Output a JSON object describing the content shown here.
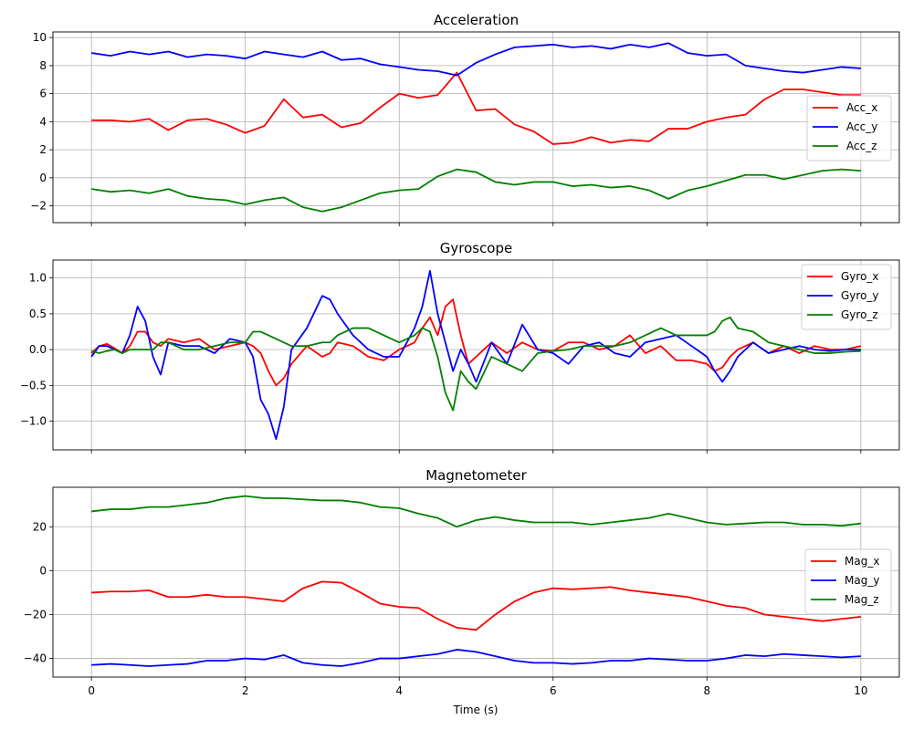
{
  "xlabel": "Time (s)",
  "x_ticks": [
    0,
    2,
    4,
    6,
    8,
    10
  ],
  "colors": {
    "x": "#ff0000",
    "y": "#0000ff",
    "z": "#008000",
    "grid": "#b0b0b0"
  },
  "chart_data": [
    {
      "type": "line",
      "title": "Acceleration",
      "xlim": [
        -0.5,
        10.5
      ],
      "ylim": [
        -3.2,
        10.4
      ],
      "y_ticks": [
        -2,
        0,
        2,
        4,
        6,
        8,
        10
      ],
      "grid": true,
      "legend_position": "center-right",
      "x": [
        0,
        0.25,
        0.5,
        0.75,
        1,
        1.25,
        1.5,
        1.75,
        2,
        2.25,
        2.5,
        2.75,
        3,
        3.25,
        3.5,
        3.75,
        4,
        4.25,
        4.5,
        4.75,
        5,
        5.25,
        5.5,
        5.75,
        6,
        6.25,
        6.5,
        6.75,
        7,
        7.25,
        7.5,
        7.75,
        8,
        8.25,
        8.5,
        8.75,
        9,
        9.25,
        9.5,
        9.75,
        10
      ],
      "series": [
        {
          "name": "Acc_x",
          "color": "#ff0000",
          "values": [
            4.1,
            4.1,
            4.0,
            4.2,
            3.4,
            4.1,
            4.2,
            3.8,
            3.2,
            3.7,
            5.6,
            4.3,
            4.5,
            3.6,
            3.9,
            5.0,
            6.0,
            5.7,
            5.9,
            7.5,
            4.8,
            4.9,
            3.8,
            3.3,
            2.4,
            2.5,
            2.9,
            2.5,
            2.7,
            2.6,
            3.5,
            3.5,
            4.0,
            4.3,
            4.5,
            5.6,
            6.3,
            6.3,
            6.1,
            5.9,
            5.9
          ]
        },
        {
          "name": "Acc_y",
          "color": "#0000ff",
          "values": [
            8.9,
            8.7,
            9.0,
            8.8,
            9.0,
            8.6,
            8.8,
            8.7,
            8.5,
            9.0,
            8.8,
            8.6,
            9.0,
            8.4,
            8.5,
            8.1,
            7.9,
            7.7,
            7.6,
            7.3,
            8.2,
            8.8,
            9.3,
            9.4,
            9.5,
            9.3,
            9.4,
            9.2,
            9.5,
            9.3,
            9.6,
            8.9,
            8.7,
            8.8,
            8.0,
            7.8,
            7.6,
            7.5,
            7.7,
            7.9,
            7.8
          ]
        },
        {
          "name": "Acc_z",
          "color": "#008000",
          "values": [
            -0.8,
            -1.0,
            -0.9,
            -1.1,
            -0.8,
            -1.3,
            -1.5,
            -1.6,
            -1.9,
            -1.6,
            -1.4,
            -2.1,
            -2.4,
            -2.1,
            -1.6,
            -1.1,
            -0.9,
            -0.8,
            0.1,
            0.6,
            0.4,
            -0.3,
            -0.5,
            -0.3,
            -0.3,
            -0.6,
            -0.5,
            -0.7,
            -0.6,
            -0.9,
            -1.5,
            -0.9,
            -0.6,
            -0.2,
            0.2,
            0.2,
            -0.1,
            0.2,
            0.5,
            0.6,
            0.5
          ]
        }
      ]
    },
    {
      "type": "line",
      "title": "Gyroscope",
      "xlim": [
        -0.5,
        10.5
      ],
      "ylim": [
        -1.4,
        1.25
      ],
      "y_ticks": [
        -1.0,
        -0.5,
        0.0,
        0.5,
        1.0
      ],
      "y_tick_labels": [
        "−1.0",
        "−0.5",
        "0.0",
        "0.5",
        "1.0"
      ],
      "grid": true,
      "legend_position": "top-right",
      "x": [
        0,
        0.1,
        0.2,
        0.3,
        0.4,
        0.5,
        0.6,
        0.7,
        0.8,
        0.9,
        1,
        1.2,
        1.4,
        1.6,
        1.8,
        2,
        2.1,
        2.2,
        2.3,
        2.4,
        2.5,
        2.6,
        2.8,
        3,
        3.1,
        3.2,
        3.4,
        3.6,
        3.8,
        4,
        4.2,
        4.3,
        4.4,
        4.5,
        4.6,
        4.7,
        4.8,
        4.9,
        5,
        5.2,
        5.4,
        5.6,
        5.8,
        6,
        6.2,
        6.4,
        6.6,
        6.8,
        7,
        7.2,
        7.4,
        7.6,
        7.8,
        8,
        8.1,
        8.2,
        8.3,
        8.4,
        8.6,
        8.8,
        9,
        9.2,
        9.4,
        9.6,
        9.8,
        10
      ],
      "series": [
        {
          "name": "Gyro_x",
          "color": "#ff0000",
          "values": [
            -0.05,
            0.05,
            0.08,
            0.02,
            -0.05,
            0.05,
            0.25,
            0.25,
            0.1,
            0.05,
            0.15,
            0.1,
            0.15,
            0.0,
            0.05,
            0.1,
            0.05,
            -0.05,
            -0.3,
            -0.5,
            -0.4,
            -0.2,
            0.05,
            -0.1,
            -0.05,
            0.1,
            0.05,
            -0.1,
            -0.15,
            0.0,
            0.1,
            0.3,
            0.45,
            0.2,
            0.6,
            0.7,
            0.2,
            -0.2,
            -0.1,
            0.1,
            -0.05,
            0.1,
            0.0,
            -0.02,
            0.1,
            0.1,
            0.0,
            0.05,
            0.2,
            -0.05,
            0.05,
            -0.15,
            -0.15,
            -0.2,
            -0.3,
            -0.25,
            -0.1,
            0.0,
            0.1,
            -0.05,
            0.05,
            -0.05,
            0.05,
            0.0,
            0.0,
            0.05
          ]
        },
        {
          "name": "Gyro_y",
          "color": "#0000ff",
          "values": [
            -0.1,
            0.05,
            0.05,
            0.0,
            -0.05,
            0.2,
            0.6,
            0.4,
            -0.1,
            -0.35,
            0.1,
            0.05,
            0.05,
            -0.05,
            0.15,
            0.1,
            -0.1,
            -0.7,
            -0.9,
            -1.25,
            -0.8,
            0.0,
            0.3,
            0.75,
            0.7,
            0.5,
            0.2,
            0.0,
            -0.1,
            -0.1,
            0.3,
            0.6,
            1.1,
            0.5,
            0.1,
            -0.3,
            0.0,
            -0.2,
            -0.45,
            0.1,
            -0.2,
            0.35,
            0.0,
            -0.05,
            -0.2,
            0.05,
            0.1,
            -0.05,
            -0.1,
            0.1,
            0.15,
            0.2,
            0.05,
            -0.1,
            -0.3,
            -0.45,
            -0.3,
            -0.1,
            0.1,
            -0.05,
            0.0,
            0.05,
            0.0,
            -0.02,
            0.0,
            0.0
          ]
        },
        {
          "name": "Gyro_z",
          "color": "#008000",
          "values": [
            -0.02,
            -0.05,
            -0.02,
            0.0,
            -0.05,
            0.0,
            0.0,
            0.0,
            0.0,
            0.1,
            0.1,
            0.0,
            0.0,
            0.05,
            0.1,
            0.1,
            0.25,
            0.25,
            0.2,
            0.15,
            0.1,
            0.05,
            0.05,
            0.1,
            0.1,
            0.2,
            0.3,
            0.3,
            0.2,
            0.1,
            0.2,
            0.3,
            0.25,
            -0.1,
            -0.6,
            -0.85,
            -0.3,
            -0.45,
            -0.55,
            -0.1,
            -0.2,
            -0.3,
            -0.05,
            -0.02,
            0.0,
            0.05,
            0.05,
            0.05,
            0.1,
            0.2,
            0.3,
            0.2,
            0.2,
            0.2,
            0.25,
            0.4,
            0.45,
            0.3,
            0.25,
            0.1,
            0.05,
            0.0,
            -0.05,
            -0.05,
            -0.03,
            -0.02
          ]
        }
      ]
    },
    {
      "type": "line",
      "title": "Magnetometer",
      "xlim": [
        -0.5,
        10.5
      ],
      "ylim": [
        -48.5,
        38
      ],
      "y_ticks": [
        -40,
        -20,
        0,
        20
      ],
      "y_tick_labels": [
        "−40",
        "−20",
        "0",
        "20"
      ],
      "grid": true,
      "legend_position": "center-right",
      "x": [
        0,
        0.25,
        0.5,
        0.75,
        1,
        1.25,
        1.5,
        1.75,
        2,
        2.25,
        2.5,
        2.75,
        3,
        3.25,
        3.5,
        3.75,
        4,
        4.25,
        4.5,
        4.75,
        5,
        5.25,
        5.5,
        5.75,
        6,
        6.25,
        6.5,
        6.75,
        7,
        7.25,
        7.5,
        7.75,
        8,
        8.25,
        8.5,
        8.75,
        9,
        9.25,
        9.5,
        9.75,
        10
      ],
      "series": [
        {
          "name": "Mag_x",
          "color": "#ff0000",
          "values": [
            -10,
            -9.5,
            -9.5,
            -9,
            -12,
            -12,
            -11,
            -12,
            -12,
            -13,
            -14,
            -8,
            -5,
            -5.5,
            -10,
            -15,
            -16.5,
            -17,
            -22,
            -26,
            -27,
            -20,
            -14,
            -10,
            -8,
            -8.5,
            -8,
            -7.5,
            -9,
            -10,
            -11,
            -12,
            -14,
            -16,
            -17,
            -20,
            -21,
            -22,
            -23,
            -22,
            -21
          ]
        },
        {
          "name": "Mag_y",
          "color": "#0000ff",
          "values": [
            -43,
            -42.5,
            -43,
            -43.5,
            -43,
            -42.5,
            -41,
            -41,
            -40,
            -40.5,
            -38.5,
            -42,
            -43,
            -43.5,
            -42,
            -40,
            -40,
            -39,
            -38,
            -36,
            -37,
            -39,
            -41,
            -42,
            -42,
            -42.5,
            -42,
            -41,
            -41,
            -40,
            -40.5,
            -41,
            -41,
            -40,
            -38.5,
            -39,
            -38,
            -38.5,
            -39,
            -39.5,
            -39
          ]
        },
        {
          "name": "Mag_z",
          "color": "#008000",
          "values": [
            27,
            28,
            28,
            29,
            29,
            30,
            31,
            33,
            34,
            33,
            33,
            32.5,
            32,
            32,
            31,
            29,
            28.5,
            26,
            24,
            20,
            23,
            24.5,
            23,
            22,
            22,
            22,
            21,
            22,
            23,
            24,
            26,
            24,
            22,
            21,
            21.5,
            22,
            22,
            21,
            21,
            20.5,
            21.5
          ]
        }
      ]
    }
  ]
}
